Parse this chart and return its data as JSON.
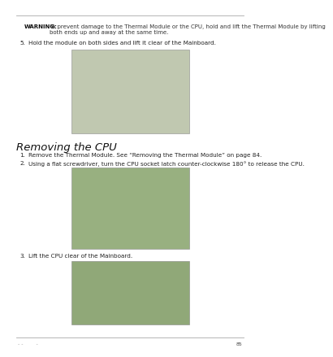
{
  "bg_color": "#ffffff",
  "page_number": "85",
  "warning_bold": "WARNING:",
  "warning_line1": "To prevent damage to the Thermal Module or the CPU, hold and lift the Thermal Module by lifting",
  "warning_line2": "both ends up and away at the same time.",
  "step5_num": "5.",
  "step5_text": "Hold the module on both sides and lift it clear of the Mainboard.",
  "section_title": "Removing the CPU",
  "step1_num": "1.",
  "step1_text": "Remove the Thermal Module. See “Removing the Thermal Module” on page 84.",
  "step2_num": "2.",
  "step2_text": "Using a flat screwdriver, turn the CPU socket latch counter-clockwise 180° to release the CPU.",
  "step3_num": "3.",
  "step3_text": "Lift the CPU clear of the Mainboard.",
  "footer_left": "- -        -",
  "text_fontsize": 5.2,
  "title_fontsize": 9.5,
  "warn_fontsize": 5.0,
  "small_fontsize": 4.5,
  "img1_color": "#c0c8b0",
  "img2_color": "#98b080",
  "img3_color": "#90a878"
}
